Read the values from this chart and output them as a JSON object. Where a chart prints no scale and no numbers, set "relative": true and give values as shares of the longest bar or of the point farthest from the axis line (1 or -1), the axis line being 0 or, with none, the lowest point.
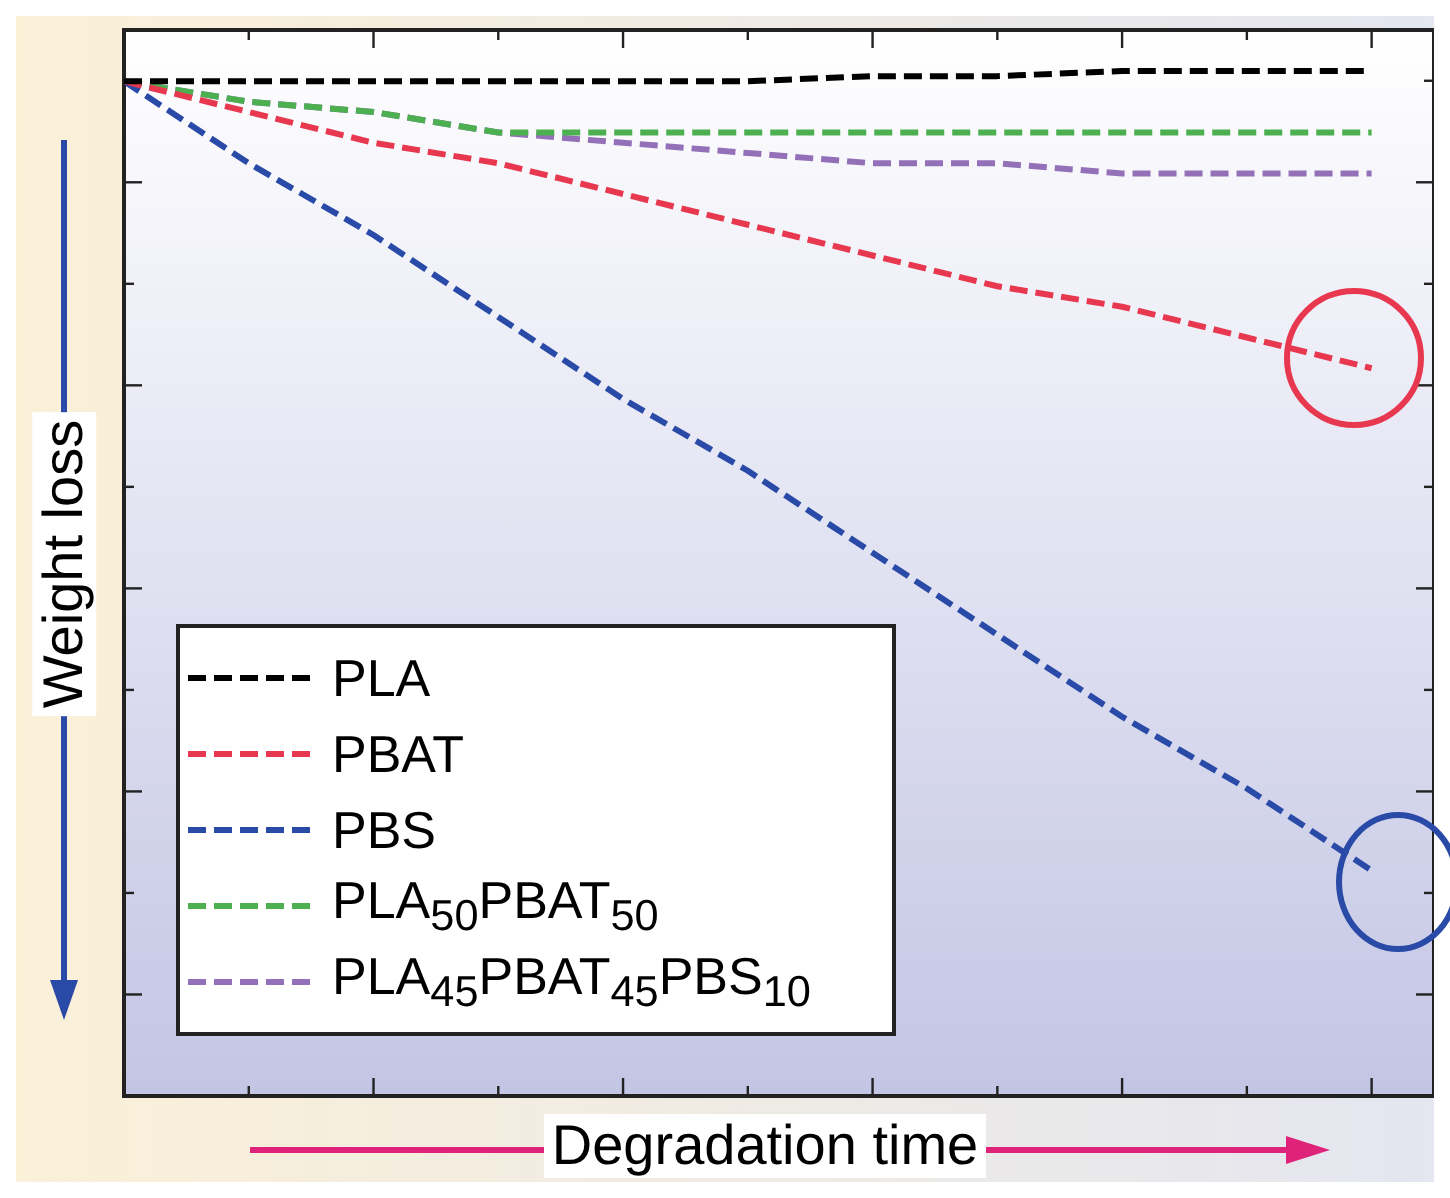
{
  "chart_data": {
    "type": "line",
    "xlabel": "Degradation time",
    "ylabel": "Weight loss",
    "relative": true,
    "legend": "bottom left",
    "line_style": "dashed",
    "marker": "none",
    "categories": [
      null,
      null,
      null,
      null,
      null,
      null,
      null,
      null,
      null,
      null,
      null
    ],
    "series": [
      {
        "name": "PLA",
        "color": "#000000",
        "values": [
          0.99,
          0.99,
          0.99,
          0.99,
          0.99,
          0.99,
          0.995,
          0.995,
          1.0,
          1.0,
          1.0
        ]
      },
      {
        "name": "PBAT",
        "color": "#e8384f",
        "values": [
          0.99,
          0.96,
          0.93,
          0.91,
          0.88,
          0.85,
          0.82,
          0.79,
          0.77,
          0.74,
          0.71
        ]
      },
      {
        "name": "PBS",
        "color": "#2a4aa8",
        "values": [
          0.99,
          0.91,
          0.84,
          0.76,
          0.68,
          0.61,
          0.53,
          0.45,
          0.37,
          0.3,
          0.22
        ]
      },
      {
        "name": "PLA$_{50}$PBAT$_{50}$",
        "color": "#4caf50",
        "values": [
          0.99,
          0.97,
          0.96,
          0.94,
          0.94,
          0.94,
          0.94,
          0.94,
          0.94,
          0.94,
          0.94
        ]
      },
      {
        "name": "PLA$_{45}$PBAT$_{45}$PBS$_{10}$",
        "color": "#9370b8",
        "values": [
          0.99,
          0.97,
          0.96,
          0.94,
          0.93,
          0.92,
          0.91,
          0.91,
          0.9,
          0.9,
          0.9
        ]
      }
    ]
  }
}
